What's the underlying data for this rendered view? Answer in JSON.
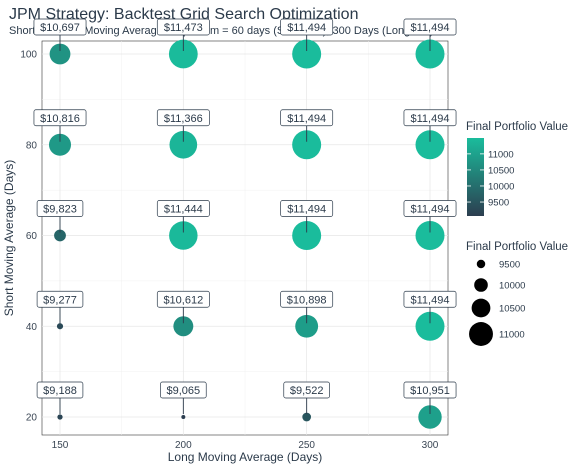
{
  "chart_data": {
    "type": "scatter",
    "title": "JPM Strategy: Backtest Grid Search Optimization",
    "subtitle": "Short and Fast Moving Averages: Optimum = 60 days (Short MA), 300 Days (Long MA)",
    "xlabel": "Long Moving Average (Days)",
    "ylabel": "Short Moving Average (Days)",
    "x_ticks": [
      150,
      200,
      250,
      300
    ],
    "y_ticks": [
      20,
      40,
      60,
      80,
      100
    ],
    "xlim": [
      145,
      305
    ],
    "ylim": [
      16,
      104
    ],
    "grid": true,
    "points": [
      {
        "x": 150,
        "y": 100,
        "value": 10697,
        "label": "$10,697"
      },
      {
        "x": 200,
        "y": 100,
        "value": 11473,
        "label": "$11,473"
      },
      {
        "x": 250,
        "y": 100,
        "value": 11494,
        "label": "$11,494"
      },
      {
        "x": 300,
        "y": 100,
        "value": 11494,
        "label": "$11,494"
      },
      {
        "x": 150,
        "y": 80,
        "value": 10816,
        "label": "$10,816"
      },
      {
        "x": 200,
        "y": 80,
        "value": 11366,
        "label": "$11,366"
      },
      {
        "x": 250,
        "y": 80,
        "value": 11494,
        "label": "$11,494"
      },
      {
        "x": 300,
        "y": 80,
        "value": 11494,
        "label": "$11,494"
      },
      {
        "x": 150,
        "y": 60,
        "value": 9823,
        "label": "$9,823"
      },
      {
        "x": 200,
        "y": 60,
        "value": 11444,
        "label": "$11,444"
      },
      {
        "x": 250,
        "y": 60,
        "value": 11494,
        "label": "$11,494"
      },
      {
        "x": 300,
        "y": 60,
        "value": 11494,
        "label": "$11,494"
      },
      {
        "x": 150,
        "y": 40,
        "value": 9277,
        "label": "$9,277"
      },
      {
        "x": 200,
        "y": 40,
        "value": 10612,
        "label": "$10,612"
      },
      {
        "x": 250,
        "y": 40,
        "value": 10898,
        "label": "$10,898"
      },
      {
        "x": 300,
        "y": 40,
        "value": 11494,
        "label": "$11,494"
      },
      {
        "x": 150,
        "y": 20,
        "value": 9188,
        "label": "$9,188"
      },
      {
        "x": 200,
        "y": 20,
        "value": 9065,
        "label": "$9,065"
      },
      {
        "x": 250,
        "y": 20,
        "value": 9522,
        "label": "$9,522"
      },
      {
        "x": 300,
        "y": 20,
        "value": 10951,
        "label": "$10,951"
      }
    ],
    "color_legend": {
      "title": "Final Portfolio Value",
      "ticks": [
        9500,
        10000,
        10500,
        11000
      ],
      "low_color": "#2c3e50",
      "high_color": "#1abc9c",
      "domain": [
        9065,
        11494
      ]
    },
    "size_legend": {
      "title": "Final Portfolio Value",
      "values": [
        9500,
        10000,
        10500,
        11000
      ]
    }
  }
}
